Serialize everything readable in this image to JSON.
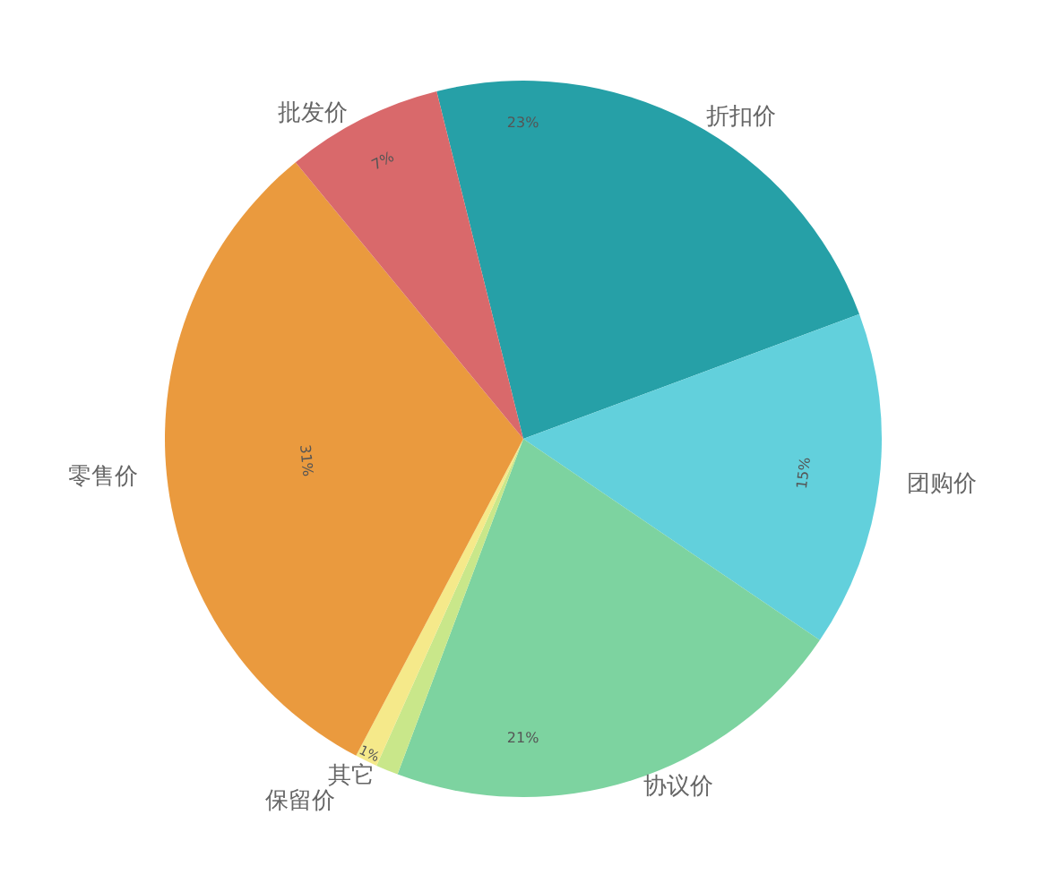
{
  "chart_data": {
    "type": "pie",
    "categories": [
      "折扣价",
      "团购价",
      "协议价",
      "其它",
      "保留价",
      "零售价",
      "批发价"
    ],
    "values": [
      23,
      15,
      21,
      1,
      1,
      31,
      7
    ],
    "value_labels": [
      "23%",
      "15%",
      "21%",
      null,
      "1%",
      "31%",
      "7%"
    ],
    "colors": [
      "#26a0a7",
      "#62d0dc",
      "#7dd3a0",
      "#c9e78a",
      "#f5e98a",
      "#ea9a3e",
      "#d9696b"
    ],
    "legend": false
  }
}
